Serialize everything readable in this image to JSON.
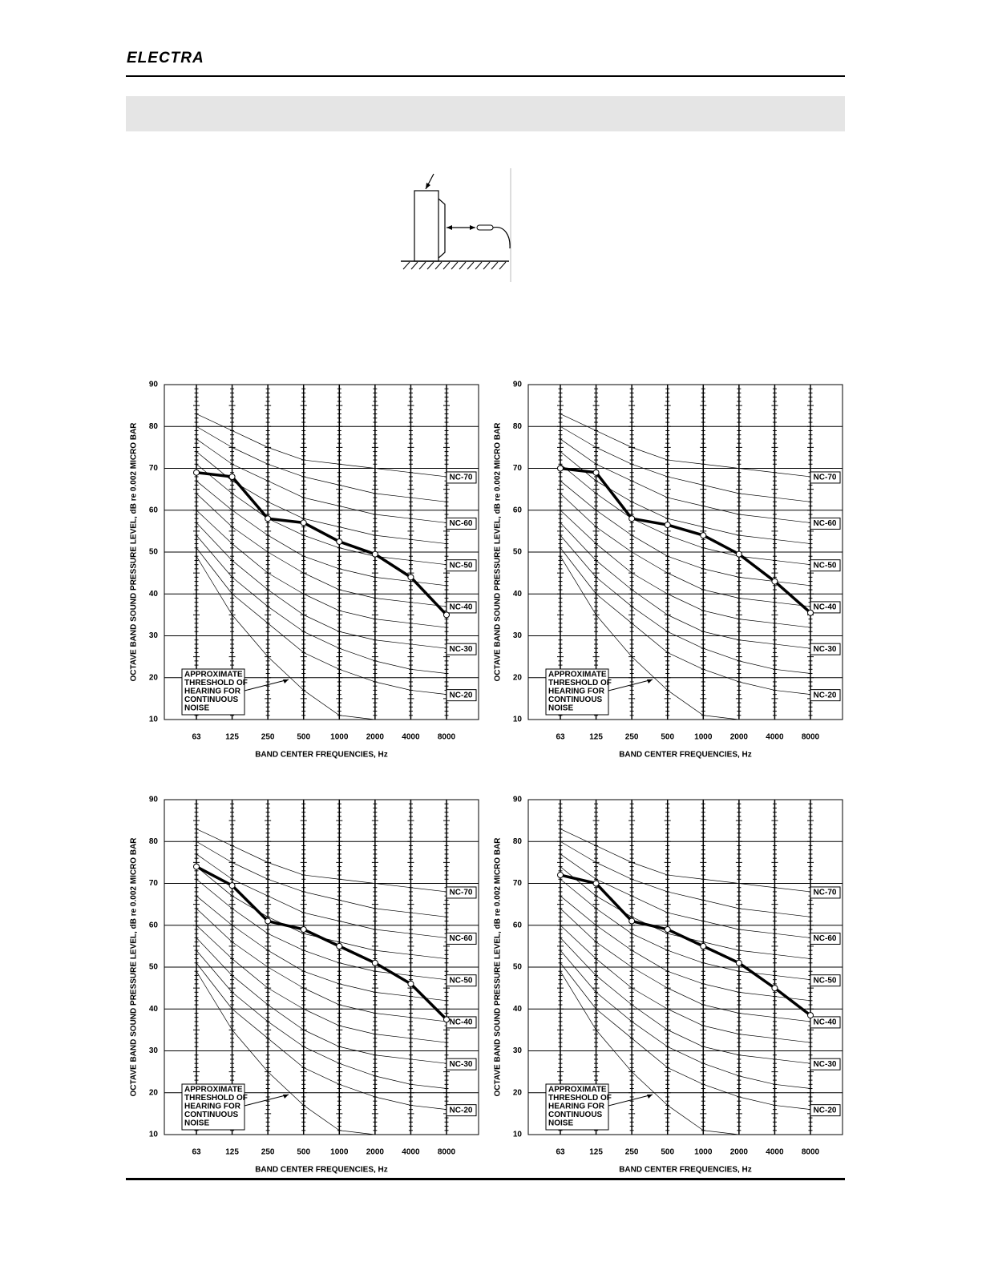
{
  "header": {
    "logo": "ELECTRA"
  },
  "chart_data": [
    {
      "type": "line",
      "ylabel": "OCTAVE BAND SOUND PRESSURE LEVEL, dB re 0.002 MICRO BAR",
      "xlabel": "BAND CENTER FREQUENCIES, Hz",
      "categories": [
        "63",
        "125",
        "250",
        "500",
        "1000",
        "2000",
        "4000",
        "8000"
      ],
      "ylim": [
        10,
        90
      ],
      "yticks": [
        10,
        20,
        30,
        40,
        50,
        60,
        70,
        80,
        90
      ],
      "grid": true,
      "annotation": [
        "APPROXIMATE",
        "THRESHOLD OF",
        "HEARING FOR",
        "CONTINUOUS",
        "NOISE"
      ],
      "series": [
        {
          "name": "NC-70",
          "color": "#000",
          "width": 0.7,
          "values": [
            83,
            79,
            75,
            72,
            71,
            70,
            69,
            68
          ]
        },
        {
          "color": "#000",
          "width": 0.7,
          "values": [
            80,
            75,
            71,
            68,
            66,
            64,
            63,
            62
          ]
        },
        {
          "name": "NC-60",
          "color": "#000",
          "width": 0.7,
          "values": [
            77,
            71,
            67,
            63,
            61,
            59,
            58,
            57
          ]
        },
        {
          "color": "#000",
          "width": 0.7,
          "values": [
            74,
            67,
            62,
            58,
            56,
            54,
            53,
            52
          ]
        },
        {
          "name": "NC-50",
          "color": "#000",
          "width": 0.7,
          "values": [
            71,
            64,
            58,
            54,
            51,
            49,
            48,
            47
          ]
        },
        {
          "color": "#000",
          "width": 0.7,
          "values": [
            67,
            60,
            54,
            49,
            46,
            44,
            43,
            42
          ]
        },
        {
          "name": "NC-40",
          "color": "#000",
          "width": 0.7,
          "values": [
            64,
            56,
            50,
            45,
            41,
            39,
            38,
            37
          ]
        },
        {
          "color": "#000",
          "width": 0.7,
          "values": [
            60,
            52,
            45,
            40,
            36,
            34,
            33,
            32
          ]
        },
        {
          "name": "NC-30",
          "color": "#000",
          "width": 0.7,
          "values": [
            57,
            48,
            41,
            35,
            31,
            29,
            28,
            27
          ]
        },
        {
          "color": "#000",
          "width": 0.7,
          "values": [
            54,
            44,
            37,
            31,
            27,
            24,
            22,
            21
          ]
        },
        {
          "name": "NC-20",
          "color": "#000",
          "width": 0.7,
          "values": [
            51,
            40,
            33,
            26,
            22,
            19,
            17,
            16
          ]
        },
        {
          "color": "#000",
          "width": 0.7,
          "values": [
            49,
            35,
            25,
            17,
            11,
            10,
            null,
            null
          ]
        },
        {
          "color": "#000",
          "width": 3.5,
          "markers": true,
          "values": [
            69,
            68,
            58,
            57,
            52.5,
            49.5,
            44,
            35
          ]
        }
      ]
    },
    {
      "type": "line",
      "ylabel": "OCTAVE BAND SOUND PRESSURE LEVEL, dB re 0.002 MICRO BAR",
      "xlabel": "BAND CENTER FREQUENCIES, Hz",
      "categories": [
        "63",
        "125",
        "250",
        "500",
        "1000",
        "2000",
        "4000",
        "8000"
      ],
      "ylim": [
        10,
        90
      ],
      "yticks": [
        10,
        20,
        30,
        40,
        50,
        60,
        70,
        80,
        90
      ],
      "grid": true,
      "annotation": [
        "APPROXIMATE",
        "THRESHOLD OF",
        "HEARING FOR",
        "CONTINUOUS",
        "NOISE"
      ],
      "series": [
        {
          "name": "NC-70",
          "color": "#000",
          "width": 0.7,
          "values": [
            83,
            79,
            75,
            72,
            71,
            70,
            69,
            68
          ]
        },
        {
          "color": "#000",
          "width": 0.7,
          "values": [
            80,
            75,
            71,
            68,
            66,
            64,
            63,
            62
          ]
        },
        {
          "name": "NC-60",
          "color": "#000",
          "width": 0.7,
          "values": [
            77,
            71,
            67,
            63,
            61,
            59,
            58,
            57
          ]
        },
        {
          "color": "#000",
          "width": 0.7,
          "values": [
            74,
            67,
            62,
            58,
            56,
            54,
            53,
            52
          ]
        },
        {
          "name": "NC-50",
          "color": "#000",
          "width": 0.7,
          "values": [
            71,
            64,
            58,
            54,
            51,
            49,
            48,
            47
          ]
        },
        {
          "color": "#000",
          "width": 0.7,
          "values": [
            67,
            60,
            54,
            49,
            46,
            44,
            43,
            42
          ]
        },
        {
          "name": "NC-40",
          "color": "#000",
          "width": 0.7,
          "values": [
            64,
            56,
            50,
            45,
            41,
            39,
            38,
            37
          ]
        },
        {
          "color": "#000",
          "width": 0.7,
          "values": [
            60,
            52,
            45,
            40,
            36,
            34,
            33,
            32
          ]
        },
        {
          "name": "NC-30",
          "color": "#000",
          "width": 0.7,
          "values": [
            57,
            48,
            41,
            35,
            31,
            29,
            28,
            27
          ]
        },
        {
          "color": "#000",
          "width": 0.7,
          "values": [
            54,
            44,
            37,
            31,
            27,
            24,
            22,
            21
          ]
        },
        {
          "name": "NC-20",
          "color": "#000",
          "width": 0.7,
          "values": [
            51,
            40,
            33,
            26,
            22,
            19,
            17,
            16
          ]
        },
        {
          "color": "#000",
          "width": 0.7,
          "values": [
            49,
            35,
            25,
            17,
            11,
            10,
            null,
            null
          ]
        },
        {
          "color": "#000",
          "width": 3.5,
          "markers": true,
          "values": [
            70,
            69,
            58,
            56.5,
            54,
            49.5,
            43,
            35.5
          ]
        }
      ]
    },
    {
      "type": "line",
      "ylabel": "OCTAVE BAND SOUND PRESSURE LEVEL, dB re 0.002 MICRO BAR",
      "xlabel": "BAND CENTER FREQUENCIES, Hz",
      "categories": [
        "63",
        "125",
        "250",
        "500",
        "1000",
        "2000",
        "4000",
        "8000"
      ],
      "ylim": [
        10,
        90
      ],
      "yticks": [
        10,
        20,
        30,
        40,
        50,
        60,
        70,
        80,
        90
      ],
      "grid": true,
      "annotation": [
        "APPROXIMATE",
        "THRESHOLD OF",
        "HEARING FOR",
        "CONTINUOUS",
        "NOISE"
      ],
      "series": [
        {
          "name": "NC-70",
          "color": "#000",
          "width": 0.7,
          "values": [
            83,
            79,
            75,
            72,
            71,
            70,
            69,
            68
          ]
        },
        {
          "color": "#000",
          "width": 0.7,
          "values": [
            80,
            75,
            71,
            68,
            66,
            64,
            63,
            62
          ]
        },
        {
          "name": "NC-60",
          "color": "#000",
          "width": 0.7,
          "values": [
            77,
            71,
            67,
            63,
            61,
            59,
            58,
            57
          ]
        },
        {
          "color": "#000",
          "width": 0.7,
          "values": [
            74,
            67,
            62,
            58,
            56,
            54,
            53,
            52
          ]
        },
        {
          "name": "NC-50",
          "color": "#000",
          "width": 0.7,
          "values": [
            71,
            64,
            58,
            54,
            51,
            49,
            48,
            47
          ]
        },
        {
          "color": "#000",
          "width": 0.7,
          "values": [
            67,
            60,
            54,
            49,
            46,
            44,
            43,
            42
          ]
        },
        {
          "name": "NC-40",
          "color": "#000",
          "width": 0.7,
          "values": [
            64,
            56,
            50,
            45,
            41,
            39,
            38,
            37
          ]
        },
        {
          "color": "#000",
          "width": 0.7,
          "values": [
            60,
            52,
            45,
            40,
            36,
            34,
            33,
            32
          ]
        },
        {
          "name": "NC-30",
          "color": "#000",
          "width": 0.7,
          "values": [
            57,
            48,
            41,
            35,
            31,
            29,
            28,
            27
          ]
        },
        {
          "color": "#000",
          "width": 0.7,
          "values": [
            54,
            44,
            37,
            31,
            27,
            24,
            22,
            21
          ]
        },
        {
          "name": "NC-20",
          "color": "#000",
          "width": 0.7,
          "values": [
            51,
            40,
            33,
            26,
            22,
            19,
            17,
            16
          ]
        },
        {
          "color": "#000",
          "width": 0.7,
          "values": [
            49,
            35,
            25,
            17,
            11,
            10,
            null,
            null
          ]
        },
        {
          "color": "#000",
          "width": 3.5,
          "markers": true,
          "values": [
            74,
            69.5,
            61,
            59,
            55,
            51,
            46,
            37.5
          ]
        }
      ]
    },
    {
      "type": "line",
      "ylabel": "OCTAVE BAND SOUND PRESSURE LEVEL, dB re 0.002 MICRO BAR",
      "xlabel": "BAND CENTER FREQUENCIES, Hz",
      "categories": [
        "63",
        "125",
        "250",
        "500",
        "1000",
        "2000",
        "4000",
        "8000"
      ],
      "ylim": [
        10,
        90
      ],
      "yticks": [
        10,
        20,
        30,
        40,
        50,
        60,
        70,
        80,
        90
      ],
      "grid": true,
      "annotation": [
        "APPROXIMATE",
        "THRESHOLD OF",
        "HEARING FOR",
        "CONTINUOUS",
        "NOISE"
      ],
      "series": [
        {
          "name": "NC-70",
          "color": "#000",
          "width": 0.7,
          "values": [
            83,
            79,
            75,
            72,
            71,
            70,
            69,
            68
          ]
        },
        {
          "color": "#000",
          "width": 0.7,
          "values": [
            80,
            75,
            71,
            68,
            66,
            64,
            63,
            62
          ]
        },
        {
          "name": "NC-60",
          "color": "#000",
          "width": 0.7,
          "values": [
            77,
            71,
            67,
            63,
            61,
            59,
            58,
            57
          ]
        },
        {
          "color": "#000",
          "width": 0.7,
          "values": [
            74,
            67,
            62,
            58,
            56,
            54,
            53,
            52
          ]
        },
        {
          "name": "NC-50",
          "color": "#000",
          "width": 0.7,
          "values": [
            71,
            64,
            58,
            54,
            51,
            49,
            48,
            47
          ]
        },
        {
          "color": "#000",
          "width": 0.7,
          "values": [
            67,
            60,
            54,
            49,
            46,
            44,
            43,
            42
          ]
        },
        {
          "name": "NC-40",
          "color": "#000",
          "width": 0.7,
          "values": [
            64,
            56,
            50,
            45,
            41,
            39,
            38,
            37
          ]
        },
        {
          "color": "#000",
          "width": 0.7,
          "values": [
            60,
            52,
            45,
            40,
            36,
            34,
            33,
            32
          ]
        },
        {
          "name": "NC-30",
          "color": "#000",
          "width": 0.7,
          "values": [
            57,
            48,
            41,
            35,
            31,
            29,
            28,
            27
          ]
        },
        {
          "color": "#000",
          "width": 0.7,
          "values": [
            54,
            44,
            37,
            31,
            27,
            24,
            22,
            21
          ]
        },
        {
          "name": "NC-20",
          "color": "#000",
          "width": 0.7,
          "values": [
            51,
            40,
            33,
            26,
            22,
            19,
            17,
            16
          ]
        },
        {
          "color": "#000",
          "width": 0.7,
          "values": [
            49,
            35,
            25,
            17,
            11,
            10,
            null,
            null
          ]
        },
        {
          "color": "#000",
          "width": 3.5,
          "markers": true,
          "values": [
            72,
            70,
            61,
            59,
            55,
            51,
            45,
            38.5
          ]
        }
      ]
    }
  ]
}
